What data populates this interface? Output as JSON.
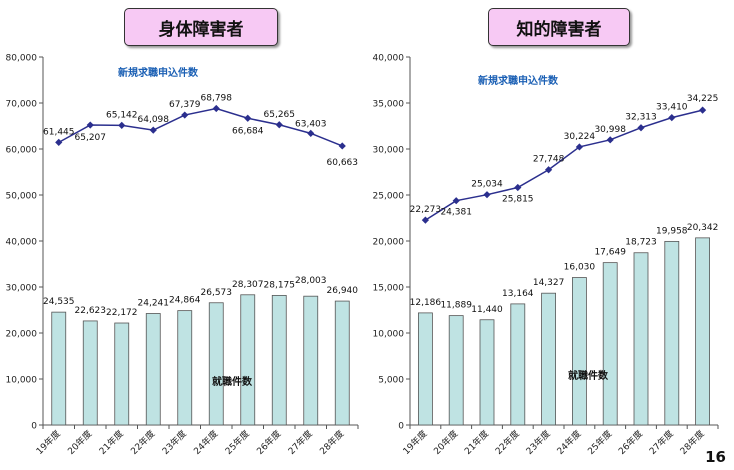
{
  "page_number": "16",
  "chart_data": [
    {
      "type": "bar",
      "title": "身体障害者",
      "categories": [
        "19年度",
        "20年度",
        "21年度",
        "22年度",
        "23年度",
        "24年度",
        "25年度",
        "26年度",
        "27年度",
        "28年度"
      ],
      "ylim": [
        0,
        80000
      ],
      "yticks": [
        "0",
        "10,000",
        "20,000",
        "30,000",
        "40,000",
        "50,000",
        "60,000",
        "70,000",
        "80,000"
      ],
      "grid": false,
      "series": [
        {
          "name": "就職件数",
          "type": "bar",
          "color": "#bfe3e3",
          "values": [
            24535,
            22623,
            22172,
            24241,
            24864,
            26573,
            28307,
            28175,
            28003,
            26940
          ],
          "labels": [
            "24,535",
            "22,623",
            "22,172",
            "24,241",
            "24,864",
            "26,573",
            "28,307",
            "28,175",
            "28,003",
            "26,940"
          ]
        },
        {
          "name": "新規求職申込件数",
          "type": "line",
          "color": "#2b2f8e",
          "values": [
            61445,
            65207,
            65142,
            64098,
            67379,
            68798,
            66684,
            65265,
            63403,
            60663
          ],
          "labels": [
            "61,445",
            "65,207",
            "65,142",
            "64,098",
            "67,379",
            "68,798",
            "66,684",
            "65,265",
            "63,403",
            "60,663"
          ]
        }
      ]
    },
    {
      "type": "bar",
      "title": "知的障害者",
      "categories": [
        "19年度",
        "20年度",
        "21年度",
        "22年度",
        "23年度",
        "24年度",
        "25年度",
        "26年度",
        "27年度",
        "28年度"
      ],
      "ylim": [
        0,
        40000
      ],
      "yticks": [
        "0",
        "5,000",
        "10,000",
        "15,000",
        "20,000",
        "25,000",
        "30,000",
        "35,000",
        "40,000"
      ],
      "grid": false,
      "series": [
        {
          "name": "就職件数",
          "type": "bar",
          "color": "#bfe3e3",
          "values": [
            12186,
            11889,
            11440,
            13164,
            14327,
            16030,
            17649,
            18723,
            19958,
            20342
          ],
          "labels": [
            "12,186",
            "11,889",
            "11,440",
            "13,164",
            "14,327",
            "16,030",
            "17,649",
            "18,723",
            "19,958",
            "20,342"
          ]
        },
        {
          "name": "新規求職申込件数",
          "type": "line",
          "color": "#2b2f8e",
          "values": [
            22273,
            24381,
            25034,
            25815,
            27748,
            30224,
            30998,
            32313,
            33410,
            34225
          ],
          "labels": [
            "22,273",
            "24,381",
            "25,034",
            "25,815",
            "27,748",
            "30,224",
            "30,998",
            "32,313",
            "33,410",
            "34,225"
          ]
        }
      ]
    }
  ]
}
